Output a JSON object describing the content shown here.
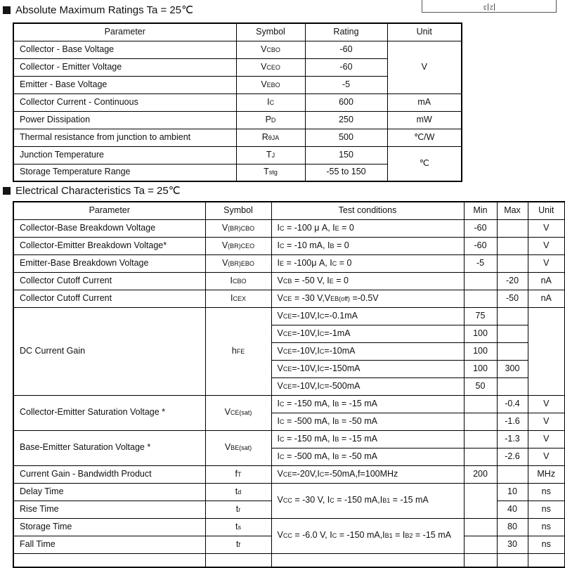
{
  "corner": {
    "labels": [
      "3",
      "2"
    ]
  },
  "headings": {
    "abs_max": "Absolute Maximum Ratings Ta = 25℃",
    "elec": "Electrical Characteristics Ta = 25℃"
  },
  "abs": {
    "headers": [
      "Parameter",
      "Symbol",
      "Rating",
      "Unit"
    ],
    "units": {
      "v": "V",
      "c": "℃"
    },
    "rows": [
      {
        "p": "Collector - Base Voltage",
        "s": "V~CBO~",
        "r": "-60"
      },
      {
        "p": "Collector - Emitter Voltage",
        "s": "V~CEO~",
        "r": "-60"
      },
      {
        "p": "Emitter - Base Voltage",
        "s": "V~EBO~",
        "r": "-5"
      },
      {
        "p": "Collector Current  - Continuous",
        "s": "I~C~",
        "r": "600",
        "u": "mA"
      },
      {
        "p": "Power Dissipation",
        "s": "P~D~",
        "r": "250",
        "u": "mW"
      },
      {
        "p": "Thermal resistance from junction to ambient",
        "s": "R~θJA~",
        "r": "500",
        "u": "℃/W"
      },
      {
        "p": "Junction Temperature",
        "s": "T~J~",
        "r": "150"
      },
      {
        "p": "Storage Temperature Range",
        "s": "T~stg~",
        "r": "-55 to 150"
      }
    ]
  },
  "elec": {
    "headers": [
      "Parameter",
      "Symbol",
      "Test  conditions",
      "Min",
      "Max",
      "Unit"
    ],
    "rows": [
      {
        "p": "Collector-Base Breakdown Voltage",
        "s": "V~(BR)CBO~",
        "t": "I~C~ = -100 μ A, I~E~ = 0",
        "min": "-60",
        "max": "",
        "u": "V"
      },
      {
        "p": "Collector-Emitter Breakdown Voltage*",
        "s": "V~(BR)CEO~",
        "t": "I~C~ = -10 mA, I~B~ = 0",
        "min": "-60",
        "max": "",
        "u": "V"
      },
      {
        "p": "Emitter-Base Breakdown Voltage",
        "s": "V~(BR)EBO~",
        "t": "I~E~ = -100μ A, I~C~ = 0",
        "min": "-5",
        "max": "",
        "u": "V"
      },
      {
        "p": "Collector Cutoff Current",
        "s": "I~CBO~",
        "t": "V~CB~ = -50 V, I~E~ = 0",
        "min": "",
        "max": "-20",
        "u": "nA"
      },
      {
        "p": "Collector Cutoff Current",
        "s": "I~CEX~",
        "t": "V~CE~ = -30 V,V~EB(off)~ =-0.5V",
        "min": "",
        "max": "-50",
        "u": "nA"
      },
      {
        "p": "DC Current Gain",
        "s": "h~FE~",
        "t": "V~CE~=-10V,I~C~=-0.1mA",
        "min": "75",
        "max": "",
        "u": ""
      },
      {
        "t": "V~CE~=-10V,I~C~=-1mA",
        "min": "100",
        "max": ""
      },
      {
        "t": "V~CE~=-10V,I~C~=-10mA",
        "min": "100",
        "max": ""
      },
      {
        "t": "V~CE~=-10V,I~C~=-150mA",
        "min": "100",
        "max": "300"
      },
      {
        "t": "V~CE~=-10V,I~C~=-500mA",
        "min": "50",
        "max": ""
      },
      {
        "p": "Collector-Emitter Saturation Voltage *",
        "s": "V~CE(sat)~",
        "t": "I~C~ = -150 mA, I~B~ = -15 mA",
        "min": "",
        "max": "-0.4",
        "u": "V"
      },
      {
        "t": "I~C~ = -500 mA, I~B~ = -50 mA",
        "min": "",
        "max": "-1.6",
        "u": "V"
      },
      {
        "p": "Base-Emitter Saturation Voltage *",
        "s": "V~BE(sat)~",
        "t": "I~C~ = -150 mA, I~B~ = -15 mA",
        "min": "",
        "max": "-1.3",
        "u": "V"
      },
      {
        "t": "I~C~ = -500 mA, I~B~ = -50 mA",
        "min": "",
        "max": "-2.6",
        "u": "V"
      },
      {
        "p": "Current Gain - Bandwidth Product",
        "s": "f~T~",
        "t": "V~CE~=-20V,I~C~=-50mA,f=100MHz",
        "min": "200",
        "max": "",
        "u": "MHz"
      },
      {
        "p": "Delay Time",
        "s": "t~d~",
        "t": "V~CC~ = -30 V, I~C~ = -150 mA,I~B1~ = -15 mA",
        "min": "",
        "max": "10",
        "u": "ns"
      },
      {
        "p": "Rise Time",
        "s": "t~r~",
        "max": "40",
        "u": "ns"
      },
      {
        "p": "Storage Time",
        "s": "t~s~",
        "t": "V~CC~ = -6.0 V, I~C~ = -150 mA,I~B1~ = I~B2~ = -15 mA",
        "min": "",
        "max": "80",
        "u": "ns"
      },
      {
        "p": "Fall Time",
        "s": "t~f~",
        "min": "",
        "max": "30",
        "u": "ns"
      }
    ]
  }
}
